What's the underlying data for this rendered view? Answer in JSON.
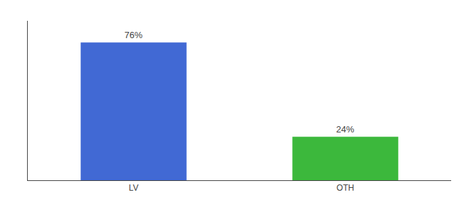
{
  "chart_data": {
    "type": "bar",
    "categories": [
      "LV",
      "OTH"
    ],
    "values": [
      76,
      24
    ],
    "colors": [
      "#4169d4",
      "#3cb83c"
    ],
    "ylim": [
      0,
      88
    ],
    "data_labels": true,
    "value_labels": [
      "76%",
      "24%"
    ],
    "tick_labels": "x",
    "grid": false
  }
}
